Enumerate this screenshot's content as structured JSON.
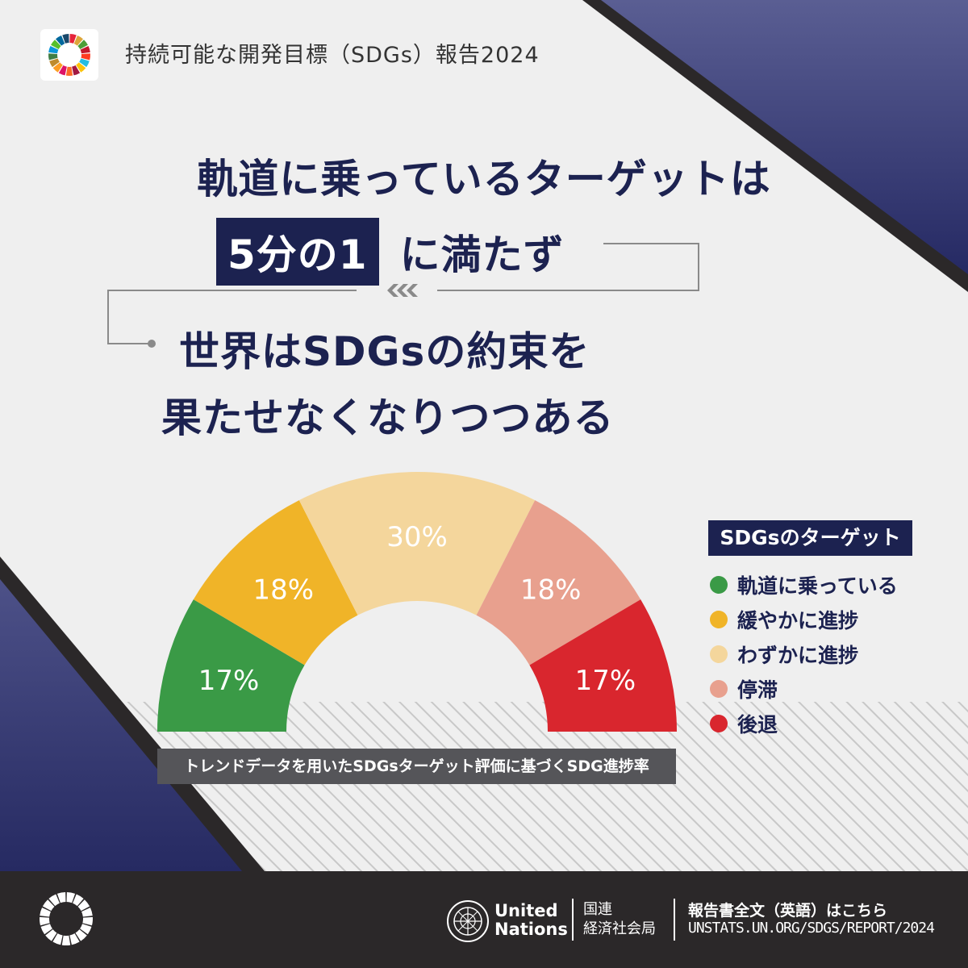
{
  "header": {
    "title": "持続可能な開発目標（SDGs）報告2024"
  },
  "headline": {
    "line1": "軌道に乗っているターゲットは",
    "highlight": "5分の1",
    "line2_rest": "に満たず",
    "line3": "世界はSDGsの約束を",
    "line4": "果たせなくなりつつある"
  },
  "chart_data": {
    "type": "pie",
    "subtype": "half-donut",
    "title": "SDGsのターゲット",
    "caption": "トレンドデータを用いたSDGsターゲット評価に基づくSDG進捗率",
    "categories": [
      "軌道に乗っている",
      "緩やかに進捗",
      "わずかに進捗",
      "停滞",
      "後退"
    ],
    "values": [
      17,
      18,
      30,
      18,
      17
    ],
    "labels": [
      "17%",
      "18%",
      "30%",
      "18%",
      "17%"
    ],
    "colors": [
      "#3a9a46",
      "#f0b428",
      "#f4d69c",
      "#e8a08e",
      "#d9262e"
    ],
    "legend_position": "right"
  },
  "footer": {
    "un_name_line1": "United",
    "un_name_line2": "Nations",
    "desa_line1": "国連",
    "desa_line2": "経済社会局",
    "report_label": "報告書全文（英語）はこちら",
    "report_url": "UNSTATS.UN.ORG/SDGS/REPORT/2024"
  },
  "colors": {
    "navy": "#1c2250",
    "accent_gradient_start": "#565a91",
    "accent_gradient_end": "#262a64"
  },
  "icons": [
    "sdg-wheel-icon",
    "un-emblem-icon",
    "chevron-left-icon"
  ]
}
